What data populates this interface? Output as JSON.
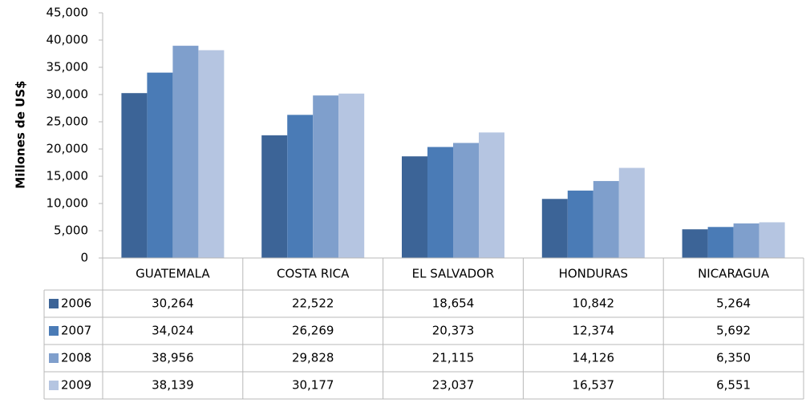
{
  "chart_data": {
    "type": "bar",
    "y_label": "Millones de US$",
    "categories": [
      "GUATEMALA",
      "COSTA RICA",
      "EL SALVADOR",
      "HONDURAS",
      "NICARAGUA"
    ],
    "series": [
      {
        "name": "2006",
        "color": "#3c6497",
        "values": [
          30264,
          22522,
          18654,
          10842,
          5264
        ],
        "value_labels": [
          "30,264",
          "22,522",
          "18,654",
          "10,842",
          "5,264"
        ]
      },
      {
        "name": "2007",
        "color": "#4a7bb6",
        "values": [
          34024,
          26269,
          20373,
          12374,
          5692
        ],
        "value_labels": [
          "34,024",
          "26,269",
          "20,373",
          "12,374",
          "5,692"
        ]
      },
      {
        "name": "2008",
        "color": "#7f9fcc",
        "values": [
          38956,
          29828,
          21115,
          14126,
          6350
        ],
        "value_labels": [
          "38,956",
          "29,828",
          "21,115",
          "14,126",
          "6,350"
        ]
      },
      {
        "name": "2009",
        "color": "#b5c5e1",
        "values": [
          38139,
          30177,
          23037,
          16537,
          6551
        ],
        "value_labels": [
          "38,139",
          "30,177",
          "23,037",
          "16,537",
          "6,551"
        ]
      }
    ],
    "ylim": [
      0,
      45000
    ],
    "yticks": [
      0,
      {
        "value": 5000,
        "label": "5,000"
      },
      {
        "value": 10000,
        "label": "10,000"
      },
      {
        "value": 15000,
        "label": "15,000"
      },
      {
        "value": 20000,
        "label": "20,000"
      },
      {
        "value": 25000,
        "label": "25,000"
      },
      {
        "value": 30000,
        "label": "30,000"
      },
      {
        "value": 35000,
        "label": "35,000"
      },
      {
        "value": 40000,
        "label": "40,000"
      },
      {
        "value": 45000,
        "label": "45,000"
      }
    ]
  }
}
